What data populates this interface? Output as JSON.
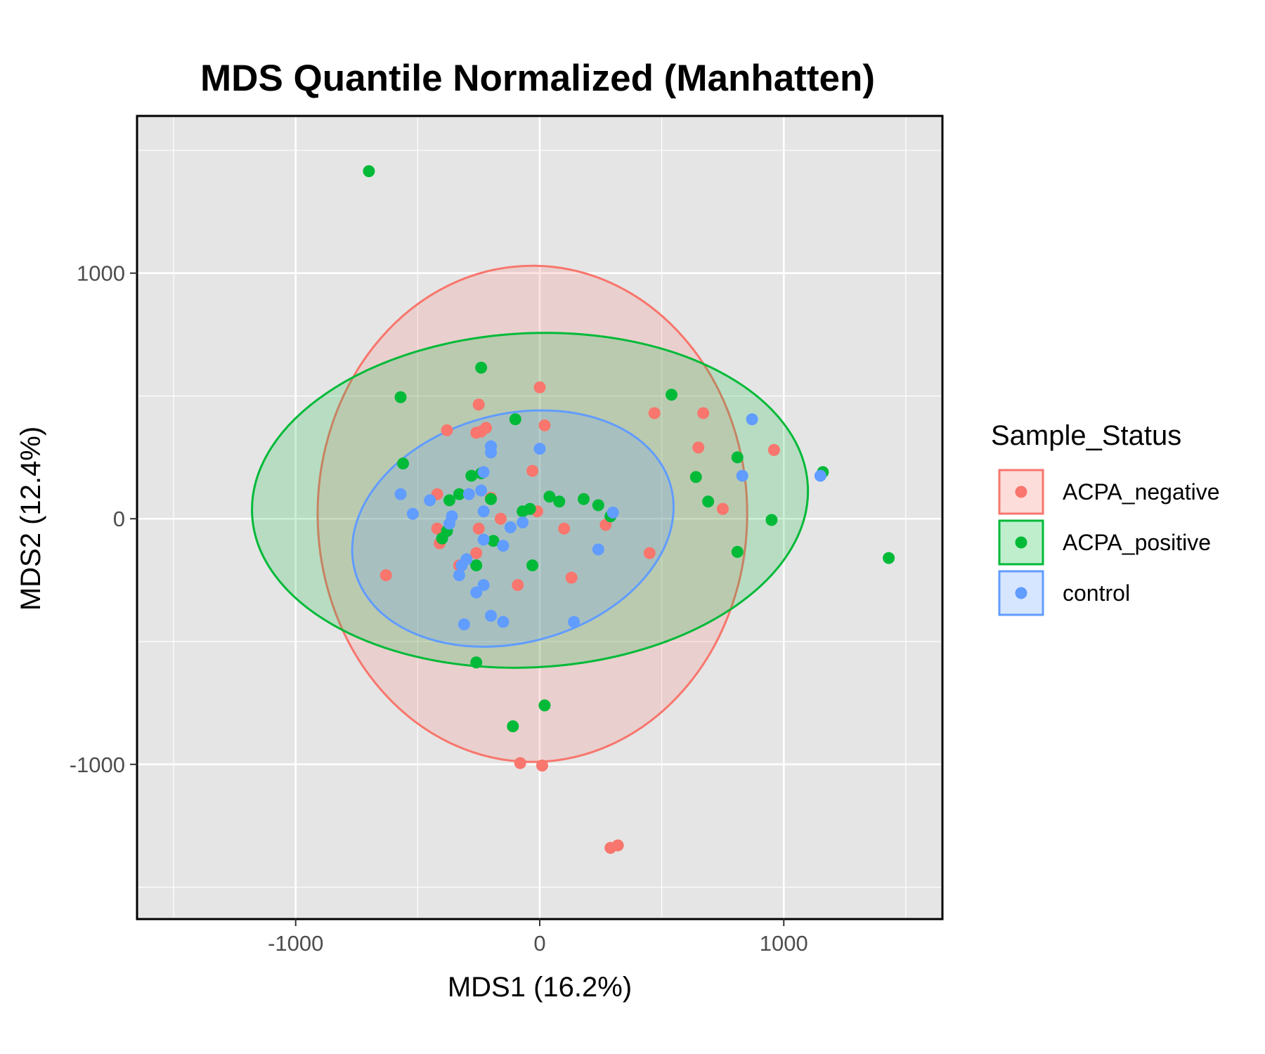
{
  "chart_data": {
    "type": "scatter",
    "title": "MDS Quantile Normalized (Manhatten)",
    "xlabel": "MDS1 (16.2%)",
    "ylabel": "MDS2 (12.4%)",
    "xlim": [
      -1650,
      1650
    ],
    "ylim": [
      -1630,
      1640
    ],
    "x_ticks": [
      -1000,
      0,
      1000
    ],
    "x_tick_labels": [
      "-1000",
      "0",
      "1000"
    ],
    "y_ticks": [
      -1000,
      0,
      1000
    ],
    "y_tick_labels": [
      "-1000",
      "0",
      "1000"
    ],
    "x_minor_gridlines": [
      -1500,
      -500,
      500,
      1500
    ],
    "y_minor_gridlines": [
      -1500,
      -500,
      500,
      1500
    ],
    "grid": true,
    "legend": {
      "title": "Sample_Status",
      "position": "right"
    },
    "series": [
      {
        "name": "ACPA_negative",
        "color": "#F8766D",
        "ellipse": {
          "center": [
            -30,
            20
          ],
          "rx": 880,
          "ry": 1010,
          "angle_deg": 0
        },
        "points": [
          [
            0,
            535
          ],
          [
            -250,
            465
          ],
          [
            20,
            380
          ],
          [
            -220,
            370
          ],
          [
            -240,
            355
          ],
          [
            -260,
            350
          ],
          [
            -380,
            360
          ],
          [
            -30,
            195
          ],
          [
            -420,
            100
          ],
          [
            -200,
            85
          ],
          [
            -10,
            30
          ],
          [
            -160,
            0
          ],
          [
            -420,
            -40
          ],
          [
            -250,
            -40
          ],
          [
            -410,
            -100
          ],
          [
            -260,
            -140
          ],
          [
            -330,
            -190
          ],
          [
            100,
            -40
          ],
          [
            270,
            -25
          ],
          [
            -630,
            -230
          ],
          [
            -90,
            -270
          ],
          [
            130,
            -240
          ],
          [
            470,
            430
          ],
          [
            670,
            430
          ],
          [
            650,
            290
          ],
          [
            960,
            280
          ],
          [
            750,
            40
          ],
          [
            450,
            -140
          ],
          [
            -80,
            -995
          ],
          [
            10,
            -1005
          ],
          [
            320,
            -1330
          ],
          [
            290,
            -1340
          ]
        ]
      },
      {
        "name": "ACPA_positive",
        "color": "#00BA38",
        "ellipse": {
          "center": [
            -40,
            75
          ],
          "rx": 1140,
          "ry": 680,
          "angle_deg": -3
        },
        "points": [
          [
            -700,
            1415
          ],
          [
            -240,
            615
          ],
          [
            -570,
            495
          ],
          [
            540,
            505
          ],
          [
            -100,
            405
          ],
          [
            -560,
            225
          ],
          [
            -280,
            175
          ],
          [
            -240,
            185
          ],
          [
            810,
            250
          ],
          [
            640,
            170
          ],
          [
            -330,
            100
          ],
          [
            -370,
            75
          ],
          [
            -200,
            80
          ],
          [
            40,
            90
          ],
          [
            80,
            70
          ],
          [
            180,
            80
          ],
          [
            240,
            55
          ],
          [
            690,
            70
          ],
          [
            -70,
            30
          ],
          [
            -40,
            40
          ],
          [
            290,
            10
          ],
          [
            950,
            -5
          ],
          [
            -380,
            -50
          ],
          [
            -400,
            -80
          ],
          [
            -190,
            -90
          ],
          [
            -30,
            -190
          ],
          [
            -260,
            -190
          ],
          [
            810,
            -135
          ],
          [
            1160,
            190
          ],
          [
            1430,
            -160
          ],
          [
            -260,
            -585
          ],
          [
            20,
            -760
          ],
          [
            -110,
            -845
          ]
        ]
      },
      {
        "name": "control",
        "color": "#619CFF",
        "ellipse": {
          "center": [
            -110,
            -40
          ],
          "rx": 670,
          "ry": 465,
          "angle_deg": -15
        },
        "points": [
          [
            -200,
            295
          ],
          [
            -200,
            270
          ],
          [
            0,
            285
          ],
          [
            -230,
            190
          ],
          [
            -570,
            100
          ],
          [
            -240,
            115
          ],
          [
            -290,
            100
          ],
          [
            -450,
            75
          ],
          [
            -520,
            20
          ],
          [
            -360,
            10
          ],
          [
            -370,
            -20
          ],
          [
            -230,
            30
          ],
          [
            -70,
            -15
          ],
          [
            -120,
            -35
          ],
          [
            -230,
            -85
          ],
          [
            -150,
            -110
          ],
          [
            240,
            -125
          ],
          [
            -300,
            -165
          ],
          [
            -320,
            -190
          ],
          [
            -330,
            -230
          ],
          [
            -230,
            -270
          ],
          [
            -260,
            -300
          ],
          [
            -200,
            -395
          ],
          [
            -150,
            -420
          ],
          [
            -310,
            -430
          ],
          [
            140,
            -420
          ],
          [
            300,
            25
          ],
          [
            870,
            405
          ],
          [
            830,
            175
          ],
          [
            1150,
            175
          ]
        ]
      }
    ]
  }
}
